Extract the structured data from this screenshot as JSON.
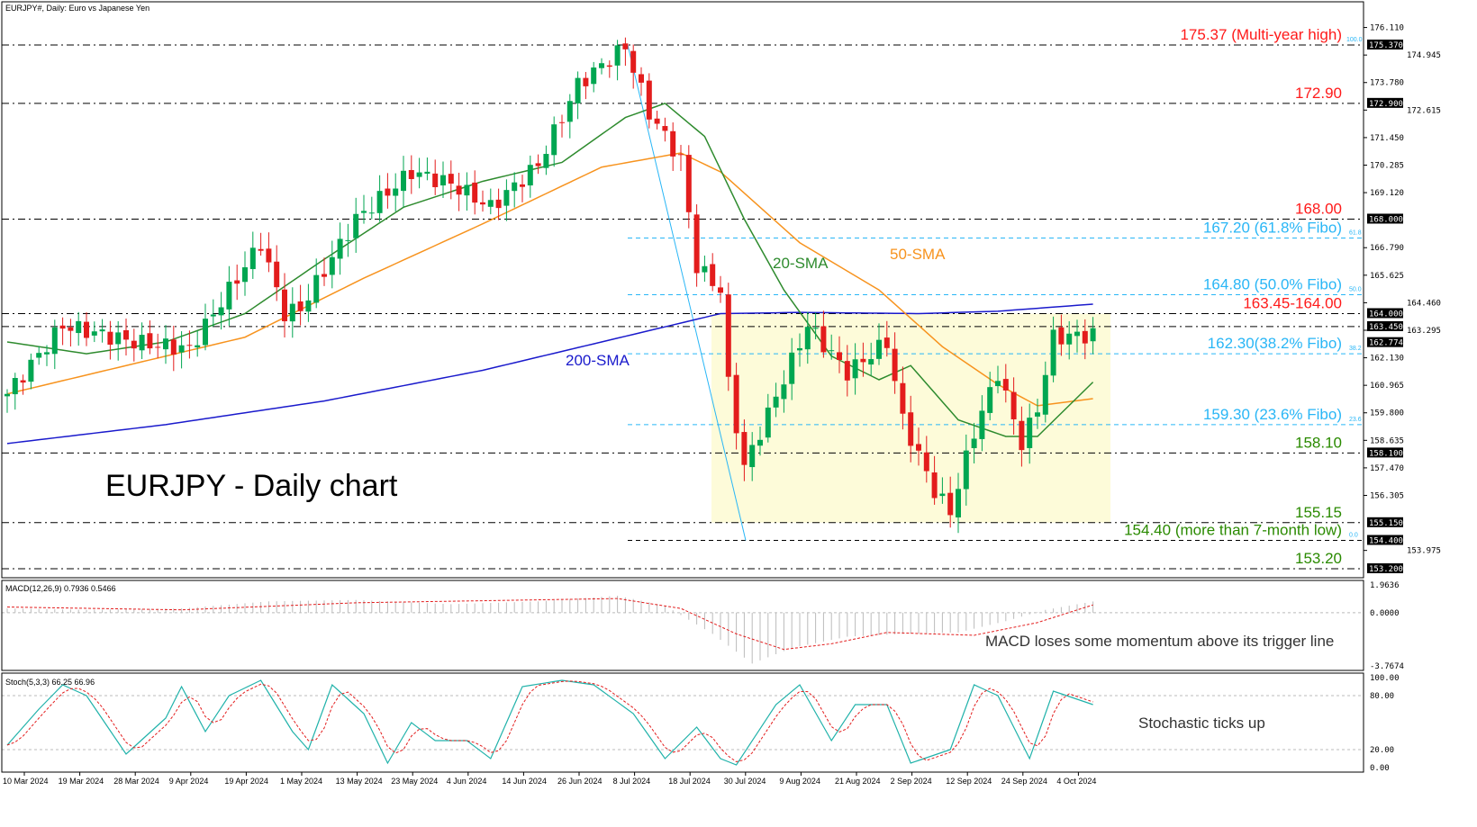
{
  "header": {
    "symbol_title": "EURJPY#, Daily: Euro vs Japanese Yen"
  },
  "chart_title": "EURJPY - Daily chart",
  "colors": {
    "up": "#00a651",
    "down": "#e31c1c",
    "sma20": "#2e8b2e",
    "sma50": "#f7931e",
    "sma200": "#1a1acc",
    "fibo": "#29b6f6",
    "zone": "#fdfbd9",
    "red_label": "#ff1a1a",
    "green_label": "#2a8a00"
  },
  "chart_data": {
    "type": "candlestick",
    "price_axis": {
      "ylim": [
        153.2,
        175.37
      ],
      "ticks": [
        "176.110",
        "174.945",
        "173.780",
        "172.615",
        "171.450",
        "170.285",
        "169.120",
        "166.790",
        "165.625",
        "164.460",
        "163.295",
        "162.130",
        "160.965",
        "159.800",
        "158.635",
        "157.470",
        "156.305",
        "153.975"
      ],
      "tags": [
        "175.370",
        "172.900",
        "168.000",
        "164.000",
        "163.450",
        "162.774",
        "158.100",
        "155.150",
        "154.400",
        "153.200"
      ]
    },
    "date_ticks": [
      "10 Mar 2024",
      "19 Mar 2024",
      "28 Mar 2024",
      "9 Apr 2024",
      "19 Apr 2024",
      "1 May 2024",
      "13 May 2024",
      "23 May 2024",
      "4 Jun 2024",
      "14 Jun 2024",
      "26 Jun 2024",
      "8 Jul 2024",
      "18 Jul 2024",
      "30 Jul 2024",
      "9 Aug 2024",
      "21 Aug 2024",
      "2 Sep 2024",
      "12 Sep 2024",
      "24 Sep 2024",
      "4 Oct 2024"
    ],
    "candle_count": 138,
    "close_waypoints": [
      [
        0,
        160.6
      ],
      [
        7,
        163.5
      ],
      [
        16,
        162.8
      ],
      [
        23,
        162.5
      ],
      [
        32,
        167
      ],
      [
        35,
        164
      ],
      [
        37,
        164.2
      ],
      [
        44,
        168
      ],
      [
        51,
        170
      ],
      [
        56,
        169.5
      ],
      [
        61,
        168.5
      ],
      [
        67,
        170.3
      ],
      [
        72,
        173.7
      ],
      [
        78,
        175.3
      ],
      [
        81,
        172.5
      ],
      [
        85,
        170.5
      ],
      [
        87,
        166
      ],
      [
        90,
        165
      ],
      [
        91,
        161
      ],
      [
        93,
        157.5
      ],
      [
        95,
        159
      ],
      [
        101,
        163.5
      ],
      [
        106,
        161.5
      ],
      [
        111,
        162.8
      ],
      [
        113,
        159.5
      ],
      [
        117,
        156.5
      ],
      [
        119,
        155.6
      ],
      [
        122,
        159
      ],
      [
        125,
        161.5
      ],
      [
        128,
        158.5
      ],
      [
        130,
        160
      ],
      [
        132,
        163
      ],
      [
        137,
        163.1
      ]
    ],
    "sma20": [
      [
        0,
        162.8
      ],
      [
        10,
        162.3
      ],
      [
        20,
        162.8
      ],
      [
        30,
        164
      ],
      [
        40,
        166.3
      ],
      [
        50,
        168.5
      ],
      [
        60,
        169.6
      ],
      [
        70,
        170.4
      ],
      [
        78,
        172.3
      ],
      [
        83,
        172.9
      ],
      [
        88,
        171.5
      ],
      [
        93,
        168
      ],
      [
        98,
        165
      ],
      [
        104,
        162.2
      ],
      [
        110,
        161.2
      ],
      [
        114,
        161.8
      ],
      [
        120,
        159.5
      ],
      [
        126,
        158.8
      ],
      [
        130,
        158.8
      ],
      [
        137,
        161.1
      ]
    ],
    "sma50": [
      [
        0,
        160.6
      ],
      [
        15,
        161.8
      ],
      [
        30,
        163
      ],
      [
        45,
        165.5
      ],
      [
        60,
        167.8
      ],
      [
        75,
        170.2
      ],
      [
        85,
        170.8
      ],
      [
        90,
        170
      ],
      [
        100,
        167
      ],
      [
        110,
        165
      ],
      [
        118,
        162.6
      ],
      [
        125,
        161
      ],
      [
        130,
        160.1
      ],
      [
        137,
        160.4
      ]
    ],
    "sma200": [
      [
        0,
        158.5
      ],
      [
        20,
        159.3
      ],
      [
        40,
        160.3
      ],
      [
        60,
        161.6
      ],
      [
        80,
        163.2
      ],
      [
        90,
        164
      ],
      [
        100,
        164.05
      ],
      [
        115,
        164
      ],
      [
        125,
        164.1
      ],
      [
        137,
        164.4
      ]
    ],
    "series_labels": {
      "sma20": "20-SMA",
      "sma50": "50-SMA",
      "sma200": "200-SMA"
    },
    "levels": [
      {
        "price": 175.37,
        "label": "175.37 (Multi-year high)",
        "color": "#ff1a1a",
        "kind": "level"
      },
      {
        "price": 172.9,
        "label": "172.90",
        "color": "#ff1a1a",
        "kind": "level"
      },
      {
        "price": 168.0,
        "label": "168.00",
        "color": "#ff1a1a",
        "kind": "level"
      },
      {
        "price": 167.2,
        "label": "167.20 (61.8% Fibo)",
        "color": "#29b6f6",
        "kind": "fibo",
        "pct": "61.8"
      },
      {
        "price": 164.8,
        "label": "164.80 (50.0% Fibo)",
        "color": "#29b6f6",
        "kind": "fibo",
        "pct": "50.0"
      },
      {
        "price": 164.0,
        "label": "163.45-164.00",
        "color": "#ff1a1a",
        "kind": "level"
      },
      {
        "price": 163.45,
        "label": "",
        "color": "#ff1a1a",
        "kind": "level"
      },
      {
        "price": 162.3,
        "label": "162.30(38.2% Fibo)",
        "color": "#29b6f6",
        "kind": "fibo",
        "pct": "38.2"
      },
      {
        "price": 159.3,
        "label": "159.30 (23.6% Fibo)",
        "color": "#29b6f6",
        "kind": "fibo",
        "pct": "23.6"
      },
      {
        "price": 158.1,
        "label": "158.10",
        "color": "#2a8a00",
        "kind": "level"
      },
      {
        "price": 155.15,
        "label": "155.15",
        "color": "#2a8a00",
        "kind": "level"
      },
      {
        "price": 154.4,
        "label": "154.40 (more than 7-month low)",
        "color": "#2a8a00",
        "kind": "fibo",
        "pct": "0.0"
      },
      {
        "price": 153.2,
        "label": "153.20",
        "color": "#2a8a00",
        "kind": "level"
      }
    ],
    "fibo_100_pct": "100.0",
    "range_zone": [
      164.0,
      155.15
    ],
    "macd": {
      "label": "MACD(12,26,9) 0.7936 0.5466",
      "ylim": [
        -3.7674,
        1.9636
      ],
      "ticks": [
        "1.9636",
        "0.0000",
        "-3.7674"
      ],
      "hist": [
        [
          0,
          0.3
        ],
        [
          10,
          0.2
        ],
        [
          22,
          0.3
        ],
        [
          33,
          0.8
        ],
        [
          44,
          0.9
        ],
        [
          56,
          0.6
        ],
        [
          67,
          0.8
        ],
        [
          77,
          1.2
        ],
        [
          83,
          0.5
        ],
        [
          89,
          -1.5
        ],
        [
          94,
          -3.6
        ],
        [
          99,
          -2.5
        ],
        [
          106,
          -1.7
        ],
        [
          113,
          -1.5
        ],
        [
          120,
          -1.4
        ],
        [
          126,
          -0.6
        ],
        [
          131,
          0.2
        ],
        [
          137,
          0.79
        ]
      ],
      "signal": [
        [
          0,
          0.4
        ],
        [
          22,
          0.2
        ],
        [
          44,
          0.7
        ],
        [
          77,
          1.0
        ],
        [
          85,
          0.3
        ],
        [
          92,
          -1.5
        ],
        [
          98,
          -2.6
        ],
        [
          104,
          -2.2
        ],
        [
          111,
          -1.4
        ],
        [
          122,
          -1.6
        ],
        [
          130,
          -0.7
        ],
        [
          137,
          0.55
        ]
      ],
      "annotation": "MACD loses some momentum above its trigger line"
    },
    "stoch": {
      "label": "Stoch(5,3,3) 66.25 66.96",
      "ylim": [
        0,
        100
      ],
      "ticks": [
        "100.00",
        "80.00",
        "20.00",
        "0.00"
      ],
      "k": [
        [
          0,
          25
        ],
        [
          4,
          65
        ],
        [
          7,
          92
        ],
        [
          10,
          80
        ],
        [
          15,
          15
        ],
        [
          20,
          55
        ],
        [
          22,
          90
        ],
        [
          25,
          40
        ],
        [
          28,
          80
        ],
        [
          32,
          97
        ],
        [
          36,
          40
        ],
        [
          38,
          20
        ],
        [
          41,
          92
        ],
        [
          45,
          60
        ],
        [
          48,
          5
        ],
        [
          51,
          50
        ],
        [
          54,
          30
        ],
        [
          58,
          30
        ],
        [
          61,
          10
        ],
        [
          65,
          90
        ],
        [
          70,
          97
        ],
        [
          74,
          92
        ],
        [
          79,
          60
        ],
        [
          83,
          10
        ],
        [
          87,
          45
        ],
        [
          90,
          10
        ],
        [
          92,
          3
        ],
        [
          97,
          70
        ],
        [
          100,
          92
        ],
        [
          104,
          30
        ],
        [
          107,
          70
        ],
        [
          111,
          70
        ],
        [
          114,
          5
        ],
        [
          119,
          20
        ],
        [
          122,
          92
        ],
        [
          125,
          80
        ],
        [
          129,
          10
        ],
        [
          132,
          85
        ],
        [
          137,
          70
        ]
      ],
      "annotation": "Stochastic ticks up"
    }
  }
}
